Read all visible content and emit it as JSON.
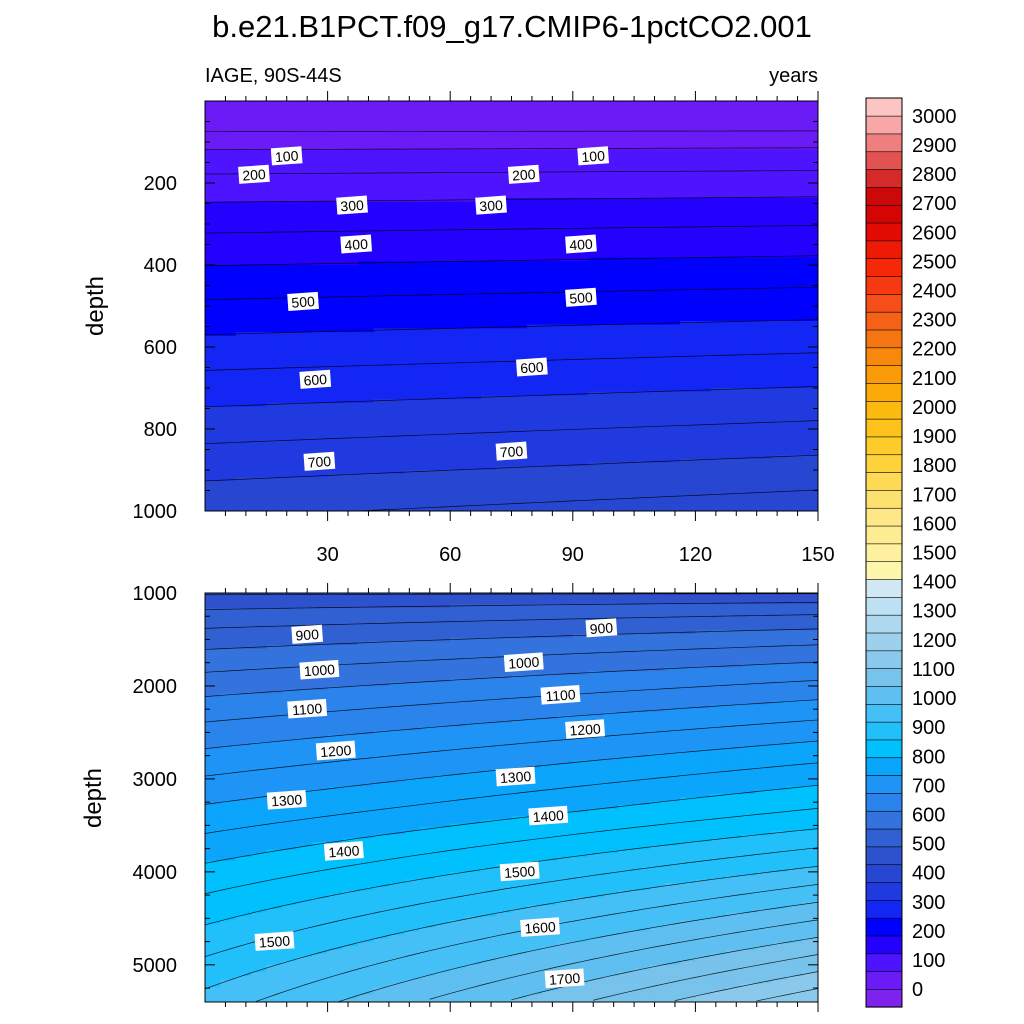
{
  "chart_data": {
    "type": "contour",
    "title": "b.e21.B1PCT.f09_g17.CMIP6-1pctCO2.001",
    "subtitle_left": "IAGE, 90S-44S",
    "subtitle_right": "years",
    "x_tick_labels": [
      "30",
      "60",
      "90",
      "120",
      "150"
    ],
    "panels": [
      {
        "name": "upper",
        "ylabel": "depth",
        "xlim": [
          0,
          150
        ],
        "ylim": [
          1000,
          0
        ],
        "y_ticks": [
          200,
          400,
          600,
          800,
          1000
        ],
        "y_tick_labels": [
          "200",
          "400",
          "600",
          "800",
          "1000"
        ],
        "contour_labels": [
          {
            "text": "100",
            "x": 20,
            "y": 135
          },
          {
            "text": "100",
            "x": 95,
            "y": 135
          },
          {
            "text": "200",
            "x": 12,
            "y": 180
          },
          {
            "text": "200",
            "x": 78,
            "y": 180
          },
          {
            "text": "300",
            "x": 36,
            "y": 255
          },
          {
            "text": "300",
            "x": 70,
            "y": 255
          },
          {
            "text": "400",
            "x": 37,
            "y": 350
          },
          {
            "text": "400",
            "x": 92,
            "y": 350
          },
          {
            "text": "500",
            "x": 24,
            "y": 490
          },
          {
            "text": "500",
            "x": 92,
            "y": 480
          },
          {
            "text": "600",
            "x": 27,
            "y": 680
          },
          {
            "text": "600",
            "x": 80,
            "y": 650
          },
          {
            "text": "700",
            "x": 28,
            "y": 880
          },
          {
            "text": "700",
            "x": 75,
            "y": 855
          }
        ]
      },
      {
        "name": "lower",
        "ylabel": "depth",
        "xlim": [
          0,
          150
        ],
        "ylim": [
          5400,
          1000
        ],
        "y_ticks": [
          1000,
          2000,
          3000,
          4000,
          5000
        ],
        "y_tick_labels": [
          "1000",
          "2000",
          "3000",
          "4000",
          "5000"
        ],
        "contour_labels": [
          {
            "text": "900",
            "x": 25,
            "y": 1450
          },
          {
            "text": "900",
            "x": 97,
            "y": 1380
          },
          {
            "text": "1000",
            "x": 28,
            "y": 1830
          },
          {
            "text": "1000",
            "x": 78,
            "y": 1750
          },
          {
            "text": "1100",
            "x": 25,
            "y": 2250
          },
          {
            "text": "1100",
            "x": 87,
            "y": 2100
          },
          {
            "text": "1200",
            "x": 32,
            "y": 2700
          },
          {
            "text": "1200",
            "x": 93,
            "y": 2470
          },
          {
            "text": "1300",
            "x": 20,
            "y": 3230
          },
          {
            "text": "1300",
            "x": 76,
            "y": 2980
          },
          {
            "text": "1400",
            "x": 34,
            "y": 3780
          },
          {
            "text": "1400",
            "x": 84,
            "y": 3400
          },
          {
            "text": "1500",
            "x": 17,
            "y": 4750
          },
          {
            "text": "1500",
            "x": 77,
            "y": 4000
          },
          {
            "text": "1600",
            "x": 82,
            "y": 4600
          },
          {
            "text": "1700",
            "x": 88,
            "y": 5150
          }
        ]
      }
    ],
    "colorbar": {
      "levels": [
        "0",
        "100",
        "200",
        "300",
        "400",
        "500",
        "600",
        "700",
        "800",
        "900",
        "1000",
        "1100",
        "1200",
        "1300",
        "1400",
        "1500",
        "1600",
        "1700",
        "1800",
        "1900",
        "2000",
        "2100",
        "2200",
        "2300",
        "2400",
        "2500",
        "2600",
        "2700",
        "2800",
        "2900",
        "3000"
      ],
      "colors": [
        "#7e22ee",
        "#6a1bf6",
        "#4f14ff",
        "#2400ff",
        "#0000ff",
        "#1326f4",
        "#203adf",
        "#2746d2",
        "#2e52ce",
        "#3060d2",
        "#3472de",
        "#2b84ec",
        "#1f94f7",
        "#0ba5fc",
        "#00c1fd",
        "#22c0fb",
        "#44c0f6",
        "#5ebff0",
        "#77c3ec",
        "#8ac9ec",
        "#9dd0ed",
        "#aed8f0",
        "#bee0f3",
        "#cfe8f4",
        "#fdf6ad",
        "#fdf1a0",
        "#fdec92",
        "#fde786",
        "#fde16e",
        "#fddb55",
        "#fdd33c",
        "#fdcc2a",
        "#fdc31c",
        "#fcb90e",
        "#fca90a",
        "#fb9a08",
        "#f8880c",
        "#f57512",
        "#f56117",
        "#f54e18",
        "#f53a12",
        "#f6280a",
        "#ef1a06",
        "#e30c05",
        "#d50505",
        "#cd0808",
        "#d42a2a",
        "#e25252",
        "#ef7e7e",
        "#f8a6a6",
        "#fdc4c4"
      ],
      "level_step": 100
    }
  }
}
